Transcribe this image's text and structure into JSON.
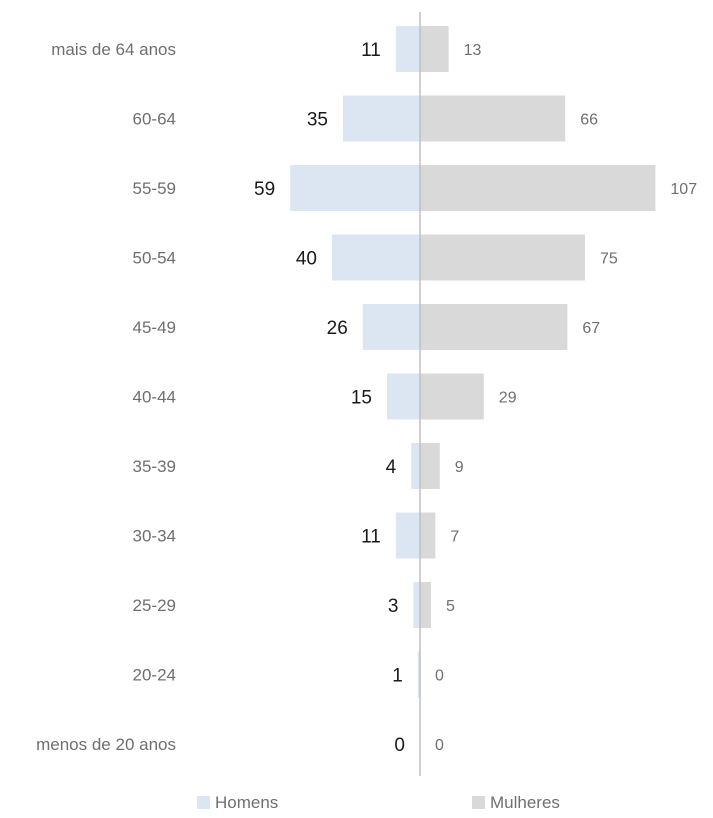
{
  "chart_data": {
    "type": "bar",
    "orientation": "horizontal",
    "layout": "population-pyramid",
    "categories": [
      "mais de 64 anos",
      "60-64",
      "55-59",
      "50-54",
      "45-49",
      "40-44",
      "35-39",
      "30-34",
      "25-29",
      "20-24",
      "menos de 20 anos"
    ],
    "series": [
      {
        "name": "Homens",
        "side": "left",
        "color": "#dce6f2",
        "values": [
          11,
          35,
          59,
          40,
          26,
          15,
          4,
          11,
          3,
          1,
          0
        ]
      },
      {
        "name": "Mulheres",
        "side": "right",
        "color": "#d9d9d9",
        "values": [
          13,
          66,
          107,
          75,
          67,
          29,
          9,
          7,
          5,
          0,
          0
        ]
      }
    ],
    "axis_color": "#bfbfbf",
    "legend_position": "bottom",
    "grid": false
  }
}
